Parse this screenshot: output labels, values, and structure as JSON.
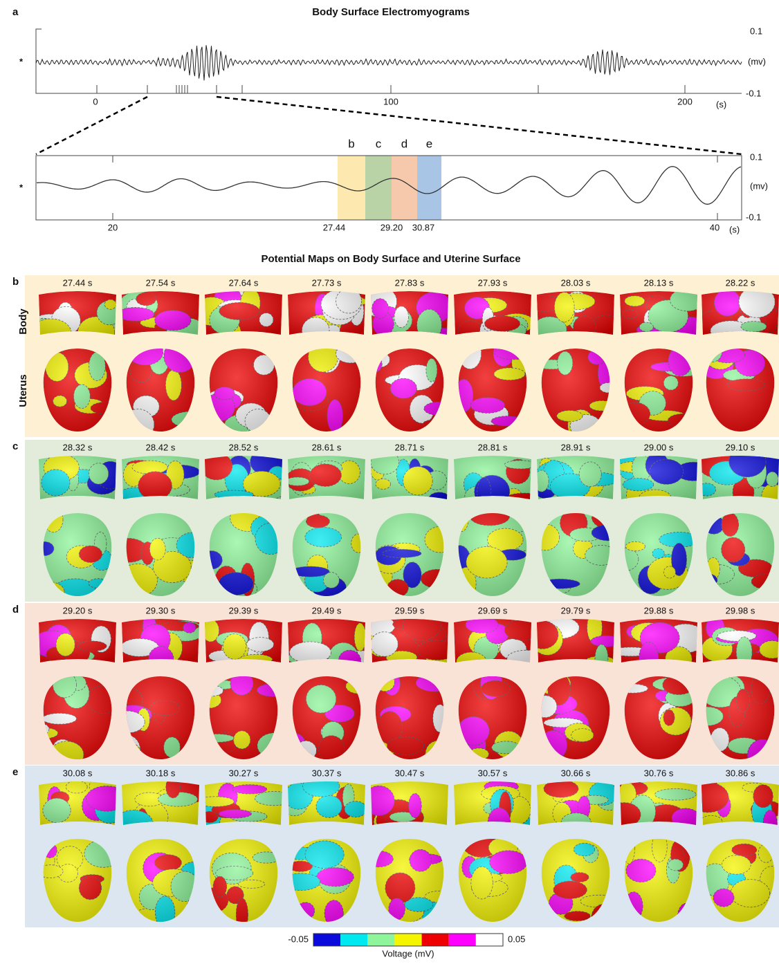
{
  "panel_a": {
    "letter": "a",
    "title": "Body Surface Electromyograms",
    "overview": {
      "marker": "*",
      "y_top": "0.1",
      "y_unit": "(mv)",
      "y_bottom": "-0.1",
      "x_ticks": [
        "0",
        "100",
        "200"
      ],
      "x_unit": "(s)"
    },
    "zoom": {
      "marker": "*",
      "y_top": "0.1",
      "y_unit": "(mv)",
      "y_bottom": "-0.1",
      "x_ticks": [
        "20",
        "27.44",
        "29.20",
        "30.87",
        "40"
      ],
      "x_unit": "(s)",
      "windows": [
        {
          "label": "b",
          "color": "#fde9b0"
        },
        {
          "label": "c",
          "color": "#b9d3a6"
        },
        {
          "label": "d",
          "color": "#f6c9ad"
        },
        {
          "label": "e",
          "color": "#a9c5e6"
        }
      ]
    }
  },
  "maps": {
    "title": "Potential Maps on Body Surface and Uterine Surface",
    "row_labels": [
      "Body",
      "Uterus"
    ],
    "rows": [
      {
        "letter": "b",
        "background": "#fdf0d3",
        "times": [
          "27.44 s",
          "27.54 s",
          "27.64 s",
          "27.73 s",
          "27.83 s",
          "27.93 s",
          "28.03 s",
          "28.13 s",
          "28.22 s"
        ]
      },
      {
        "letter": "c",
        "background": "#e3ecdb",
        "times": [
          "28.32 s",
          "28.42 s",
          "28.52 s",
          "28.61 s",
          "28.71 s",
          "28.81 s",
          "28.91 s",
          "29.00 s",
          "29.10 s"
        ]
      },
      {
        "letter": "d",
        "background": "#f9e2d6",
        "times": [
          "29.20 s",
          "29.30 s",
          "29.39 s",
          "29.49 s",
          "29.59 s",
          "29.69 s",
          "29.79 s",
          "29.88 s",
          "29.98 s"
        ]
      },
      {
        "letter": "e",
        "background": "#dce6f1",
        "times": [
          "30.08 s",
          "30.18 s",
          "30.27 s",
          "30.37 s",
          "30.47 s",
          "30.57 s",
          "30.66 s",
          "30.76 s",
          "30.86 s"
        ]
      }
    ]
  },
  "colorbar": {
    "min_label": "-0.05",
    "max_label": "0.05",
    "title": "Voltage (mV)",
    "colors": [
      "#0a0adc",
      "#00e8f0",
      "#8ef59a",
      "#f5f500",
      "#ee0000",
      "#ff00ff",
      "#ffffff"
    ]
  }
}
